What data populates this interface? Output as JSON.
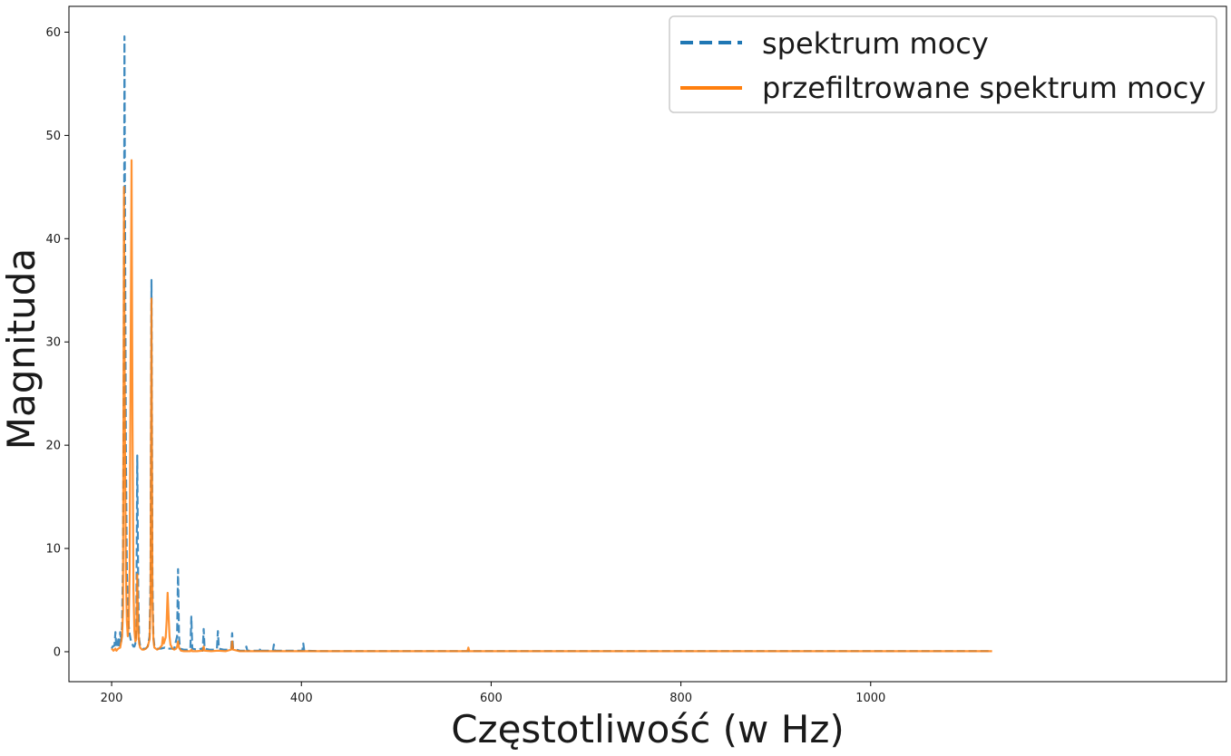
{
  "chart_data": {
    "type": "line",
    "xlabel": "Częstotliwość (w Hz)",
    "ylabel": "Magnituda",
    "xlim": [
      155,
      1375
    ],
    "ylim": [
      -2.9,
      62.5
    ],
    "x_ticks": [
      200,
      400,
      600,
      800,
      1000
    ],
    "y_ticks": [
      0,
      10,
      20,
      30,
      40,
      50,
      60
    ],
    "x_tick_labels": [
      "200",
      "400",
      "600",
      "800",
      "1000"
    ],
    "y_tick_labels": [
      "0",
      "10",
      "20",
      "30",
      "40",
      "50",
      "60"
    ],
    "grid": false,
    "legend_position": "top-right",
    "series": [
      {
        "name": "spektrum mocy",
        "color": "#1f77b4",
        "line_style": "dashed",
        "points": [
          [
            200,
            0.3
          ],
          [
            201,
            0.5
          ],
          [
            203,
            0.6
          ],
          [
            204,
            1.9
          ],
          [
            205,
            0.4
          ],
          [
            206,
            0.5
          ],
          [
            207,
            1.2
          ],
          [
            208,
            0.6
          ],
          [
            209,
            1.9
          ],
          [
            210,
            1.0
          ],
          [
            211,
            2.5
          ],
          [
            212,
            9.0
          ],
          [
            213,
            30.0
          ],
          [
            213.5,
            59.6
          ],
          [
            214,
            45.0
          ],
          [
            215,
            20.0
          ],
          [
            216,
            8.0
          ],
          [
            217,
            4.0
          ],
          [
            218,
            2.5
          ],
          [
            219,
            1.7
          ],
          [
            220,
            1.2
          ],
          [
            221,
            0.9
          ],
          [
            222,
            0.7
          ],
          [
            223,
            0.5
          ],
          [
            224,
            0.5
          ],
          [
            225,
            0.8
          ],
          [
            226,
            2.0
          ],
          [
            227,
            19.0
          ],
          [
            228,
            6.0
          ],
          [
            229,
            1.2
          ],
          [
            230,
            0.6
          ],
          [
            233,
            0.3
          ],
          [
            236,
            0.3
          ],
          [
            238,
            0.5
          ],
          [
            240,
            1.5
          ],
          [
            241,
            7.0
          ],
          [
            242,
            36.0
          ],
          [
            243,
            7.0
          ],
          [
            244,
            1.5
          ],
          [
            245,
            0.6
          ],
          [
            248,
            0.3
          ],
          [
            252,
            0.3
          ],
          [
            256,
            0.4
          ],
          [
            258,
            0.3
          ],
          [
            262,
            0.3
          ],
          [
            266,
            0.3
          ],
          [
            269,
            1.5
          ],
          [
            270,
            8.0
          ],
          [
            271,
            1.5
          ],
          [
            272,
            0.3
          ],
          [
            276,
            0.2
          ],
          [
            280,
            0.2
          ],
          [
            283,
            0.3
          ],
          [
            284,
            3.4
          ],
          [
            285,
            0.3
          ],
          [
            290,
            0.2
          ],
          [
            295,
            0.3
          ],
          [
            296,
            0.1
          ],
          [
            297,
            2.2
          ],
          [
            298,
            0.3
          ],
          [
            303,
            0.2
          ],
          [
            309,
            0.2
          ],
          [
            311,
            0.3
          ],
          [
            312,
            2.0
          ],
          [
            313,
            0.3
          ],
          [
            318,
            0.2
          ],
          [
            324,
            0.2
          ],
          [
            326,
            0.3
          ],
          [
            327,
            1.8
          ],
          [
            328,
            0.3
          ],
          [
            335,
            0.1
          ],
          [
            341,
            0.1
          ],
          [
            342,
            0.5
          ],
          [
            343,
            0.1
          ],
          [
            350,
            0.1
          ],
          [
            356,
            0.1
          ],
          [
            357,
            0.4
          ],
          [
            358,
            0.1
          ],
          [
            365,
            0.1
          ],
          [
            370,
            0.1
          ],
          [
            371,
            0.7
          ],
          [
            372,
            0.1
          ],
          [
            385,
            0.1
          ],
          [
            401,
            0.1
          ],
          [
            402,
            0.8
          ],
          [
            403,
            0.1
          ],
          [
            420,
            0.05
          ],
          [
            450,
            0.05
          ],
          [
            500,
            0.05
          ],
          [
            600,
            0.05
          ],
          [
            700,
            0.05
          ],
          [
            800,
            0.05
          ],
          [
            900,
            0.05
          ],
          [
            1000,
            0.05
          ],
          [
            1100,
            0.05
          ],
          [
            1128,
            0.05
          ]
        ]
      },
      {
        "name": "przefiltrowane spektrum mocy",
        "color": "#ff7f0e",
        "line_style": "solid",
        "points": [
          [
            200,
            0.3
          ],
          [
            202,
            0.1
          ],
          [
            204,
            0.3
          ],
          [
            205,
            0.1
          ],
          [
            207,
            0.3
          ],
          [
            209,
            0.4
          ],
          [
            210,
            0.9
          ],
          [
            211,
            1.5
          ],
          [
            212,
            4.0
          ],
          [
            213,
            45.0
          ],
          [
            214,
            22.0
          ],
          [
            215,
            8.0
          ],
          [
            216,
            3.0
          ],
          [
            217,
            1.5
          ],
          [
            218,
            2.5
          ],
          [
            219,
            8.0
          ],
          [
            220,
            28.0
          ],
          [
            221,
            47.6
          ],
          [
            222,
            22.0
          ],
          [
            223,
            6.0
          ],
          [
            224,
            2.0
          ],
          [
            225,
            1.0
          ],
          [
            226,
            1.2
          ],
          [
            227,
            7.5
          ],
          [
            228,
            2.5
          ],
          [
            229,
            0.8
          ],
          [
            230,
            0.4
          ],
          [
            232,
            0.2
          ],
          [
            234,
            0.2
          ],
          [
            236,
            0.3
          ],
          [
            238,
            0.5
          ],
          [
            240,
            1.2
          ],
          [
            241,
            5.0
          ],
          [
            242,
            34.2
          ],
          [
            243,
            5.0
          ],
          [
            244,
            1.2
          ],
          [
            245,
            0.4
          ],
          [
            248,
            0.2
          ],
          [
            250,
            0.3
          ],
          [
            253,
            0.6
          ],
          [
            254,
            1.4
          ],
          [
            255,
            0.8
          ],
          [
            257,
            1.4
          ],
          [
            258,
            3.0
          ],
          [
            259,
            5.7
          ],
          [
            260,
            3.5
          ],
          [
            261,
            1.5
          ],
          [
            262,
            0.7
          ],
          [
            264,
            0.3
          ],
          [
            266,
            0.2
          ],
          [
            268,
            0.3
          ],
          [
            269,
            0.5
          ],
          [
            270,
            1.0
          ],
          [
            271,
            0.4
          ],
          [
            273,
            0.1
          ],
          [
            276,
            0.05
          ],
          [
            280,
            0.05
          ],
          [
            283,
            0.05
          ],
          [
            284,
            0.2
          ],
          [
            285,
            0.05
          ],
          [
            290,
            0.05
          ],
          [
            296,
            0.1
          ],
          [
            297,
            0.5
          ],
          [
            298,
            0.1
          ],
          [
            305,
            0.05
          ],
          [
            312,
            0.1
          ],
          [
            320,
            0.05
          ],
          [
            326,
            0.2
          ],
          [
            327,
            1.0
          ],
          [
            328,
            0.2
          ],
          [
            335,
            0.05
          ],
          [
            350,
            0.05
          ],
          [
            380,
            0.05
          ],
          [
            420,
            0.05
          ],
          [
            500,
            0.05
          ],
          [
            575,
            0.05
          ],
          [
            576,
            0.4
          ],
          [
            577,
            0.05
          ],
          [
            700,
            0.05
          ],
          [
            850,
            0.05
          ],
          [
            1000,
            0.05
          ],
          [
            1128,
            0.05
          ]
        ]
      }
    ]
  }
}
